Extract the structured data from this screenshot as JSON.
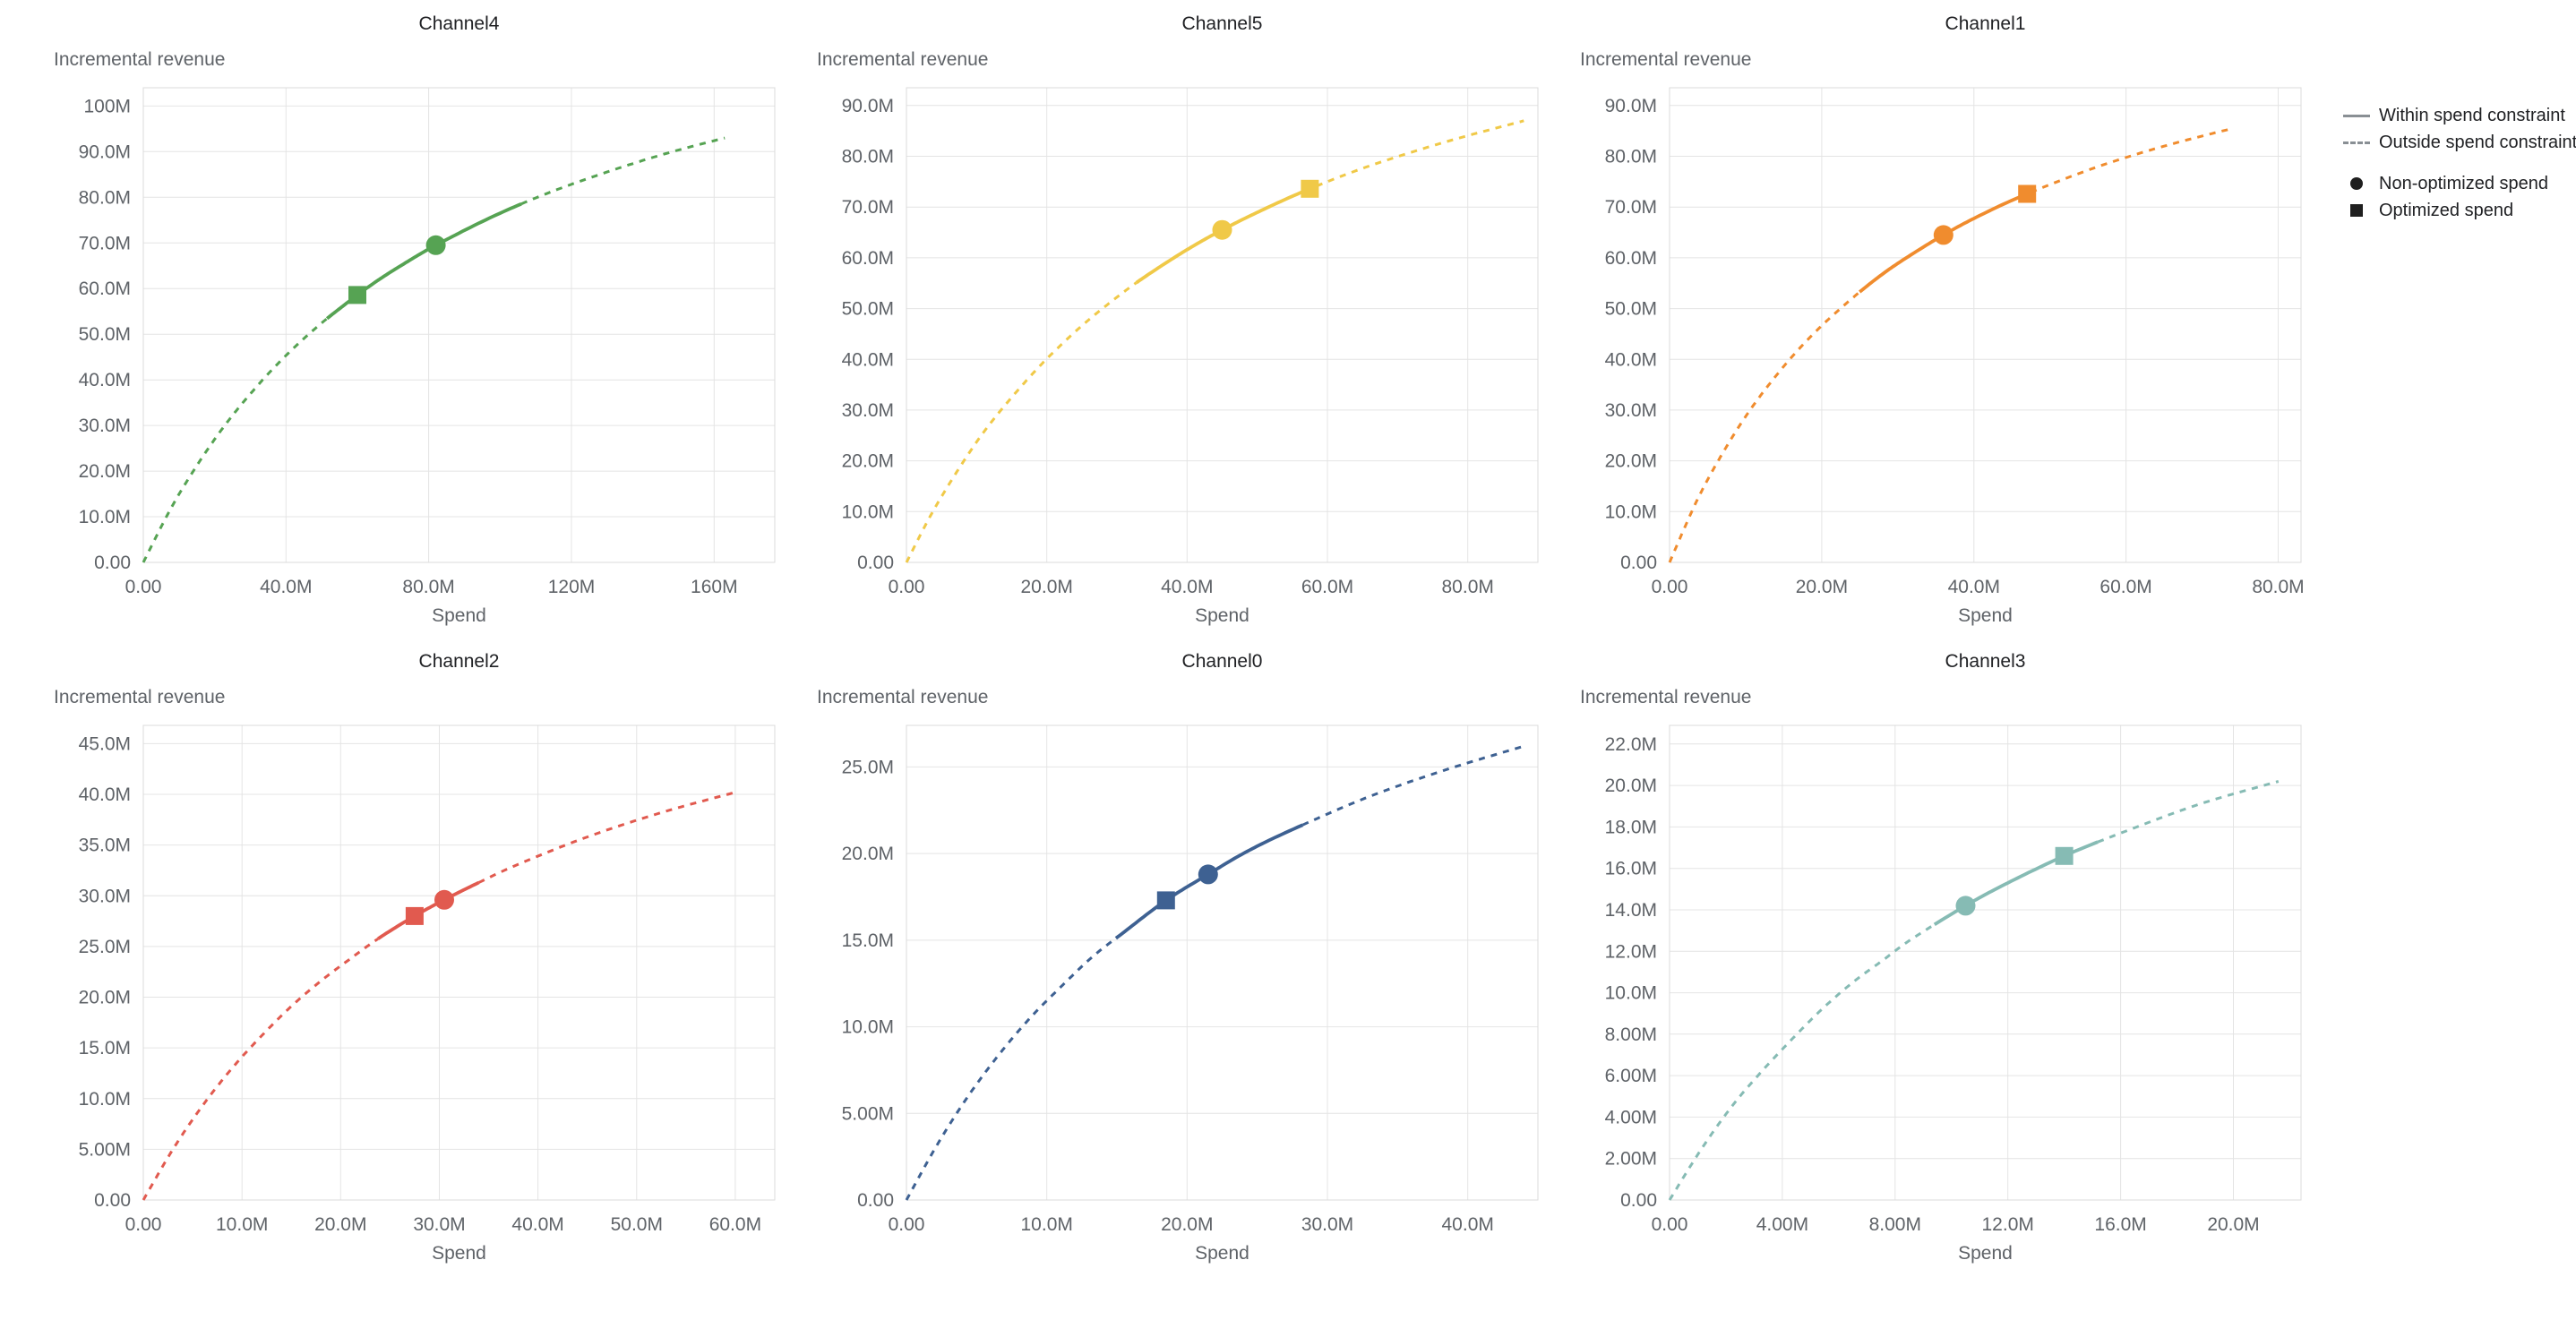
{
  "legend": {
    "items": [
      {
        "swatch": "solid-line",
        "label": "Within spend constraint"
      },
      {
        "swatch": "dashed-line",
        "label": "Outside spend constraint"
      },
      {
        "swatch": "circle",
        "label": "Non-optimized spend"
      },
      {
        "swatch": "square",
        "label": "Optimized spend"
      }
    ]
  },
  "chart_data": [
    {
      "type": "line",
      "title": "Channel4",
      "xlabel": "Spend",
      "ylabel": "Incremental revenue",
      "unit": "millions",
      "color": "#56A353",
      "x_ticks": [
        "0.00",
        "40.0M",
        "80.0M",
        "120M",
        "160M"
      ],
      "y_ticks": [
        "0.00",
        "10.0M",
        "20.0M",
        "30.0M",
        "40.0M",
        "50.0M",
        "60.0M",
        "70.0M",
        "80.0M",
        "90.0M",
        "100M"
      ],
      "x_range": [
        0,
        177
      ],
      "y_range": [
        0,
        104
      ],
      "curve_points": [
        [
          0,
          0
        ],
        [
          8,
          12.2
        ],
        [
          16,
          22.4
        ],
        [
          24,
          31.2
        ],
        [
          33,
          39.6
        ],
        [
          41,
          46.1
        ],
        [
          49,
          51.8
        ],
        [
          57,
          56.8
        ],
        [
          65,
          61.4
        ],
        [
          73,
          65.4
        ],
        [
          82,
          69.5
        ],
        [
          98,
          75.8
        ],
        [
          114,
          81.1
        ],
        [
          131,
          85.8
        ],
        [
          147,
          89.7
        ],
        [
          163,
          93.0
        ]
      ],
      "solid_range": [
        52,
        106
      ],
      "non_optimized_spend": {
        "x": 82,
        "y": 69.5
      },
      "optimized_spend": {
        "x": 60,
        "y": 58.6
      }
    },
    {
      "type": "line",
      "title": "Channel5",
      "xlabel": "Spend",
      "ylabel": "Incremental revenue",
      "unit": "millions",
      "color": "#F0C948",
      "x_ticks": [
        "0.00",
        "20.0M",
        "40.0M",
        "60.0M",
        "80.0M"
      ],
      "y_ticks": [
        "0.00",
        "10.0M",
        "20.0M",
        "30.0M",
        "40.0M",
        "50.0M",
        "60.0M",
        "70.0M",
        "80.0M",
        "90.0M"
      ],
      "x_range": [
        0,
        90
      ],
      "y_range": [
        0,
        93.5
      ],
      "curve_points": [
        [
          0,
          0
        ],
        [
          4,
          10.6
        ],
        [
          9,
          21.7
        ],
        [
          13,
          29.2
        ],
        [
          18,
          37.2
        ],
        [
          22,
          42.8
        ],
        [
          26,
          47.8
        ],
        [
          31,
          53.3
        ],
        [
          35,
          57.2
        ],
        [
          40,
          61.6
        ],
        [
          45,
          65.5
        ],
        [
          51,
          69.6
        ],
        [
          57.5,
          73.6
        ],
        [
          66,
          78.1
        ],
        [
          77,
          82.9
        ],
        [
          88,
          87.0
        ]
      ],
      "solid_range": [
        33,
        58.5
      ],
      "non_optimized_spend": {
        "x": 45,
        "y": 65.5
      },
      "optimized_spend": {
        "x": 57.5,
        "y": 73.6
      }
    },
    {
      "type": "line",
      "title": "Channel1",
      "xlabel": "Spend",
      "ylabel": "Incremental revenue",
      "unit": "millions",
      "color": "#F08C2E",
      "x_ticks": [
        "0.00",
        "20.0M",
        "40.0M",
        "60.0M",
        "80.0M"
      ],
      "y_ticks": [
        "0.00",
        "10.0M",
        "20.0M",
        "30.0M",
        "40.0M",
        "50.0M",
        "60.0M",
        "70.0M",
        "80.0M",
        "90.0M"
      ],
      "x_range": [
        0,
        83
      ],
      "y_range": [
        0,
        93.5
      ],
      "curve_points": [
        [
          0,
          0
        ],
        [
          3.7,
          12.5
        ],
        [
          7.4,
          22.6
        ],
        [
          11,
          30.9
        ],
        [
          15,
          38.6
        ],
        [
          18.5,
          44.4
        ],
        [
          22,
          49.4
        ],
        [
          26,
          54.5
        ],
        [
          30,
          58.9
        ],
        [
          36,
          64.5
        ],
        [
          41,
          68.5
        ],
        [
          47,
          72.6
        ],
        [
          56,
          77.8
        ],
        [
          65,
          82.0
        ],
        [
          74,
          85.5
        ]
      ],
      "solid_range": [
        25,
        47.5
      ],
      "non_optimized_spend": {
        "x": 36,
        "y": 64.5
      },
      "optimized_spend": {
        "x": 47,
        "y": 72.6
      }
    },
    {
      "type": "line",
      "title": "Channel2",
      "xlabel": "Spend",
      "ylabel": "Incremental revenue",
      "unit": "millions",
      "color": "#E15A4F",
      "x_ticks": [
        "0.00",
        "10.0M",
        "20.0M",
        "30.0M",
        "40.0M",
        "50.0M",
        "60.0M"
      ],
      "y_ticks": [
        "0.00",
        "5.00M",
        "10.0M",
        "15.0M",
        "20.0M",
        "25.0M",
        "30.0M",
        "35.0M",
        "40.0M",
        "45.0M"
      ],
      "x_range": [
        0,
        64
      ],
      "y_range": [
        0,
        46.8
      ],
      "curve_points": [
        [
          0,
          0
        ],
        [
          3,
          5.0
        ],
        [
          6,
          9.3
        ],
        [
          9,
          13.0
        ],
        [
          12,
          16.2
        ],
        [
          15,
          19.1
        ],
        [
          18,
          21.6
        ],
        [
          21,
          23.8
        ],
        [
          24,
          25.9
        ],
        [
          27.5,
          28.0
        ],
        [
          30.5,
          29.6
        ],
        [
          34,
          31.3
        ],
        [
          38,
          33.1
        ],
        [
          45,
          35.8
        ],
        [
          52.5,
          38.2
        ],
        [
          60,
          40.2
        ]
      ],
      "solid_range": [
        24,
        34
      ],
      "non_optimized_spend": {
        "x": 30.5,
        "y": 29.6
      },
      "optimized_spend": {
        "x": 27.5,
        "y": 28.0
      }
    },
    {
      "type": "line",
      "title": "Channel0",
      "xlabel": "Spend",
      "ylabel": "Incremental revenue",
      "unit": "millions",
      "color": "#3E6192",
      "x_ticks": [
        "0.00",
        "10.0M",
        "20.0M",
        "30.0M",
        "40.0M"
      ],
      "y_ticks": [
        "0.00",
        "5.00M",
        "10.0M",
        "15.0M",
        "20.0M",
        "25.0M"
      ],
      "x_range": [
        0,
        45
      ],
      "y_range": [
        0,
        27.4
      ],
      "curve_points": [
        [
          0,
          0
        ],
        [
          2.2,
          3.2
        ],
        [
          4.4,
          6.0
        ],
        [
          6.6,
          8.4
        ],
        [
          8.8,
          10.5
        ],
        [
          11,
          12.3
        ],
        [
          13.2,
          14.0
        ],
        [
          15.4,
          15.4
        ],
        [
          18.5,
          17.3
        ],
        [
          21.5,
          18.8
        ],
        [
          24,
          20.0
        ],
        [
          27,
          21.2
        ],
        [
          32.7,
          23.2
        ],
        [
          38.3,
          24.8
        ],
        [
          44,
          26.2
        ]
      ],
      "solid_range": [
        15,
        28.5
      ],
      "non_optimized_spend": {
        "x": 21.5,
        "y": 18.8
      },
      "optimized_spend": {
        "x": 18.5,
        "y": 17.3
      }
    },
    {
      "type": "line",
      "title": "Channel3",
      "xlabel": "Spend",
      "ylabel": "Incremental revenue",
      "unit": "millions",
      "color": "#86BBB4",
      "x_ticks": [
        "0.00",
        "4.00M",
        "8.00M",
        "12.0M",
        "16.0M",
        "20.0M"
      ],
      "y_ticks": [
        "0.00",
        "2.00M",
        "4.00M",
        "6.00M",
        "8.00M",
        "10.0M",
        "12.0M",
        "14.0M",
        "16.0M",
        "18.0M",
        "20.0M",
        "22.0M"
      ],
      "x_range": [
        0,
        22.4
      ],
      "y_range": [
        0,
        22.9
      ],
      "curve_points": [
        [
          0,
          0
        ],
        [
          1.1,
          2.4
        ],
        [
          2.2,
          4.5
        ],
        [
          3.2,
          6.1
        ],
        [
          4.3,
          7.7
        ],
        [
          5.4,
          9.2
        ],
        [
          6.5,
          10.5
        ],
        [
          7.5,
          11.5
        ],
        [
          8.6,
          12.6
        ],
        [
          10.5,
          14.2
        ],
        [
          12,
          15.3
        ],
        [
          14,
          16.6
        ],
        [
          16,
          17.7
        ],
        [
          18.8,
          19.1
        ],
        [
          21.6,
          20.2
        ]
      ],
      "solid_range": [
        9.4,
        15.2
      ],
      "non_optimized_spend": {
        "x": 10.5,
        "y": 14.2
      },
      "optimized_spend": {
        "x": 14,
        "y": 16.6
      }
    }
  ]
}
